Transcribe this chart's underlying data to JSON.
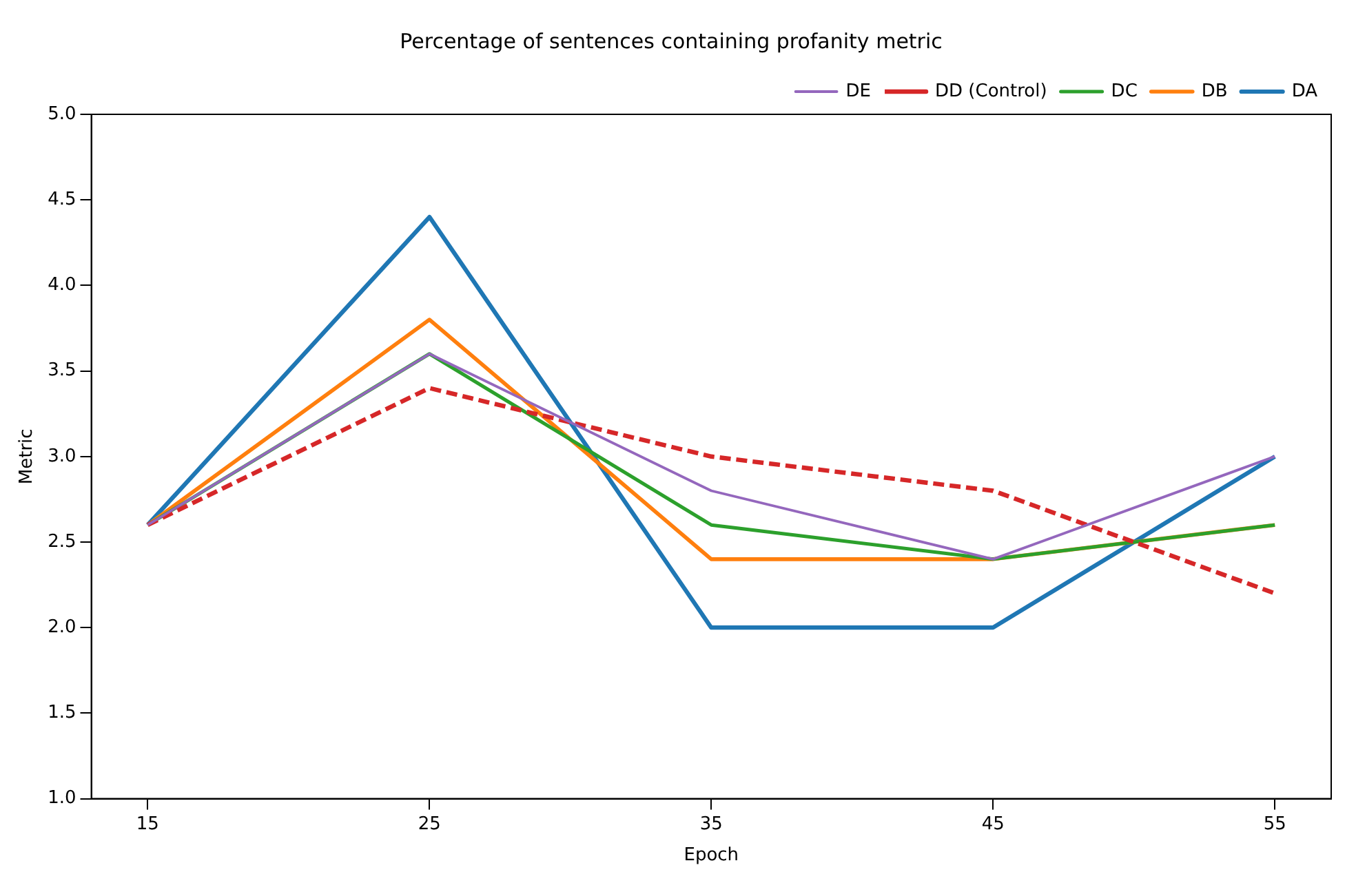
{
  "chart_data": {
    "type": "line",
    "title": "Percentage of sentences containing profanity metric",
    "xlabel": "Epoch",
    "ylabel": "Metric",
    "x": [
      15,
      25,
      35,
      45,
      55
    ],
    "series": [
      {
        "name": "DA",
        "color": "#1f77b4",
        "values": [
          2.6,
          4.4,
          2.0,
          2.0,
          3.0
        ]
      },
      {
        "name": "DB",
        "color": "#ff7f0e",
        "values": [
          2.6,
          3.8,
          2.4,
          2.4,
          2.6
        ]
      },
      {
        "name": "DC",
        "color": "#2ca02c",
        "values": [
          2.6,
          3.6,
          2.6,
          2.4,
          2.6
        ]
      },
      {
        "name": "DD (Control)",
        "color": "#d62728",
        "values": [
          2.6,
          3.4,
          3.0,
          2.8,
          2.2
        ],
        "line_style": "dashed"
      },
      {
        "name": "DE",
        "color": "#9467bd",
        "values": [
          2.6,
          3.6,
          2.8,
          2.4,
          3.0
        ]
      }
    ],
    "xlim": [
      13,
      57
    ],
    "xticks": [
      15,
      25,
      35,
      45,
      55
    ],
    "ylim": [
      1,
      5
    ],
    "yticks": [
      {
        "value": 1,
        "label": "1.0"
      },
      {
        "value": 1.5,
        "label": "1.5"
      },
      {
        "value": 2,
        "label": "2.0"
      },
      {
        "value": 2.5,
        "label": "2.5"
      },
      {
        "value": 3,
        "label": "3.0"
      },
      {
        "value": 3.5,
        "label": "3.5"
      },
      {
        "value": 4,
        "label": "4.0"
      },
      {
        "value": 4.5,
        "label": "4.5"
      },
      {
        "value": 5,
        "label": "5.0"
      }
    ],
    "grid": false,
    "legend": "top right",
    "marker": "none",
    "line_style": "solid"
  }
}
